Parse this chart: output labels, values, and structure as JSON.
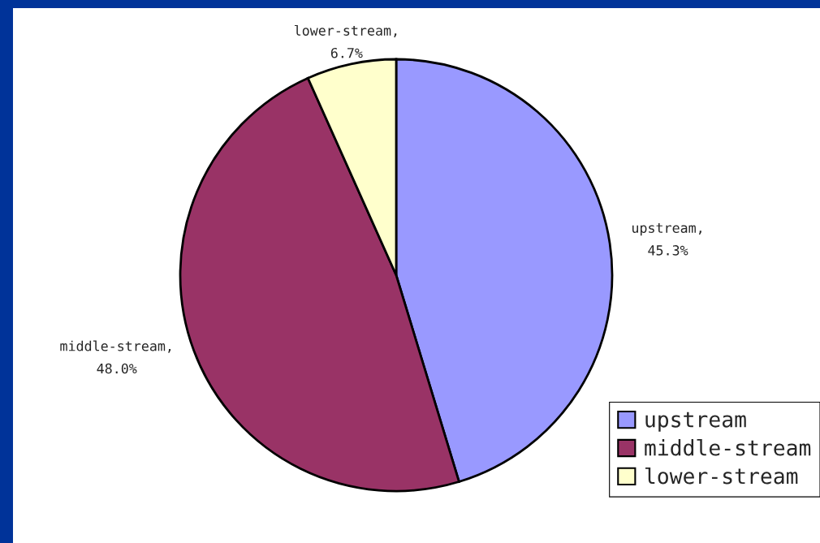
{
  "chart_data": {
    "type": "pie",
    "categories": [
      "upstream",
      "middle-stream",
      "lower-stream"
    ],
    "values": [
      45.3,
      48.0,
      6.7
    ],
    "value_labels": [
      "upstream,\n45.3%",
      "middle-stream,\n48.0%",
      "lower-stream,\n6.7%"
    ],
    "colors": [
      "#9999ff",
      "#993366",
      "#ffffcc"
    ],
    "legend": "bottom right"
  }
}
